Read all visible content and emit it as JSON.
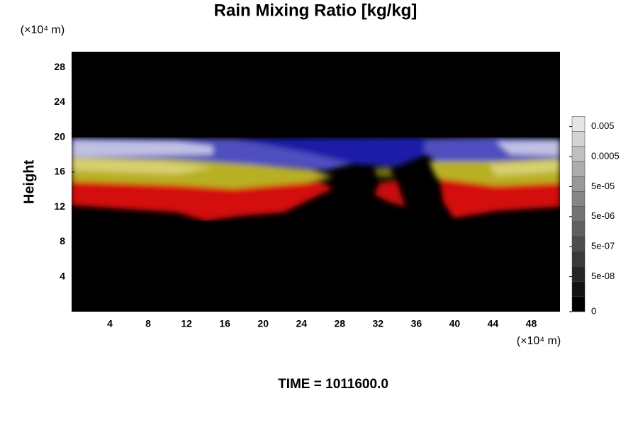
{
  "chart_data": {
    "type": "contour",
    "title": "Rain Mixing Ratio [kg/kg]",
    "y_label": "Height",
    "y_unit": "(×10⁴ m)",
    "x_unit": "(×10⁴ m)",
    "footer": "TIME = 1011600.0",
    "xlim": [
      0,
      51
    ],
    "ylim": [
      0,
      29.8
    ],
    "xticks": [
      4,
      8,
      12,
      16,
      20,
      24,
      28,
      32,
      36,
      40,
      44,
      48
    ],
    "yticks": [
      4,
      8,
      12,
      16,
      20,
      24,
      28
    ],
    "colorbar_ticks": [
      0,
      {
        "value": 5e-08,
        "label": "5e-08"
      },
      {
        "value": 5e-07,
        "label": "5e-07"
      },
      {
        "value": 5e-06,
        "label": "5e-06"
      },
      {
        "value": 5e-05,
        "label": "5e-05"
      },
      {
        "value": 0.0005,
        "label": "0.0005"
      },
      {
        "value": 0.005,
        "label": "0.005"
      }
    ]
  }
}
